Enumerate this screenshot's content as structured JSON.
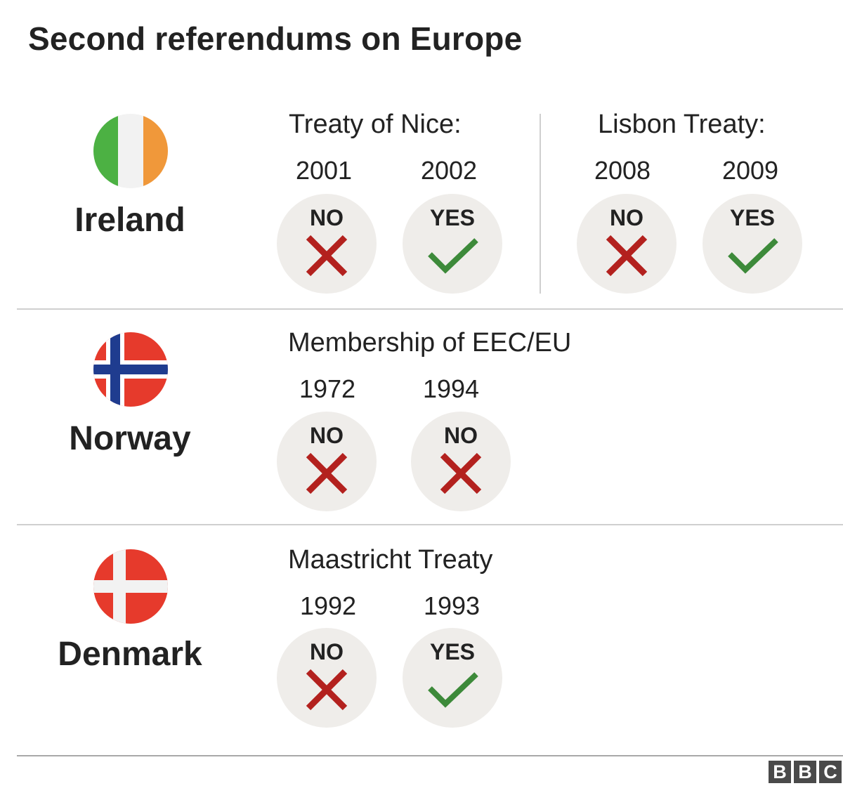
{
  "title": "Second referendums on Europe",
  "icons": {
    "no": "cross-icon",
    "yes": "check-icon"
  },
  "colors": {
    "no_mark": "#b3211e",
    "yes_mark": "#3d8a3a",
    "result_bg": "#efedea",
    "ireland_green": "#4cb143",
    "ireland_white": "#f2f2f2",
    "ireland_orange": "#f0983a",
    "norway_red": "#e63a2c",
    "norway_blue": "#1f3c8f",
    "denmark_red": "#e63a2c"
  },
  "countries": [
    {
      "name": "Ireland",
      "groups": [
        {
          "title": "Treaty of Nice:",
          "votes": [
            {
              "year": "2001",
              "result": "NO"
            },
            {
              "year": "2002",
              "result": "YES"
            }
          ]
        },
        {
          "title": "Lisbon Treaty:",
          "votes": [
            {
              "year": "2008",
              "result": "NO"
            },
            {
              "year": "2009",
              "result": "YES"
            }
          ]
        }
      ]
    },
    {
      "name": "Norway",
      "groups": [
        {
          "title": "Membership of EEC/EU",
          "votes": [
            {
              "year": "1972",
              "result": "NO"
            },
            {
              "year": "1994",
              "result": "NO"
            }
          ]
        }
      ]
    },
    {
      "name": "Denmark",
      "groups": [
        {
          "title": "Maastricht Treaty",
          "votes": [
            {
              "year": "1992",
              "result": "NO"
            },
            {
              "year": "1993",
              "result": "YES"
            }
          ]
        }
      ]
    }
  ],
  "source_logo": [
    "B",
    "B",
    "C"
  ]
}
